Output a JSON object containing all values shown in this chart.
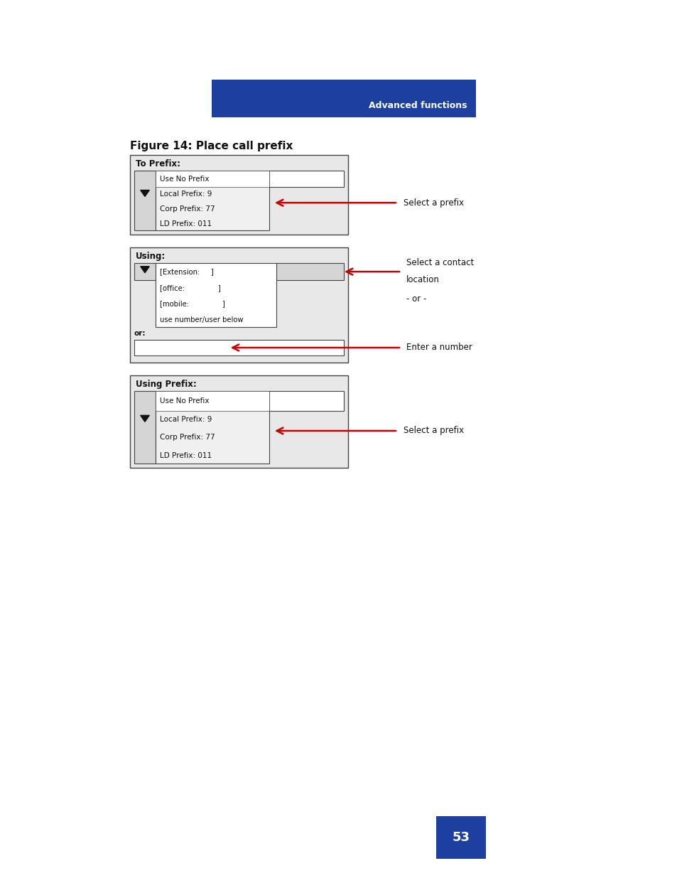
{
  "page_bg": "#ffffff",
  "header_bar_color": "#1c3fa0",
  "header_bar_text": "Advanced functions",
  "header_bar_text_color": "#ffffff",
  "figure_title": "Figure 14: Place call prefix",
  "panel1": {
    "label": "To Prefix:",
    "items": [
      "Use No Prefix",
      "Local Prefix: 9",
      "Corp Prefix: 77",
      "LD Prefix: 011"
    ],
    "arrow_label": "Select a prefix"
  },
  "panel2": {
    "label": "Using:",
    "dropdown_items": [
      "[Extension:     ]",
      "[office:               ]",
      "[mobile:               ]",
      "use number/user below"
    ],
    "or_label": "or:",
    "arrow_label1": "Select a contact",
    "arrow_label1b": "location",
    "or_text": "- or -",
    "arrow_label2": "Enter a number"
  },
  "panel3": {
    "label": "Using Prefix:",
    "items": [
      "Use No Prefix",
      "Local Prefix: 9",
      "Corp Prefix: 77",
      "LD Prefix: 011"
    ],
    "arrow_label": "Select a prefix"
  },
  "footer_box_color": "#1c3fa0",
  "footer_text": "53",
  "footer_text_color": "#ffffff",
  "panel_border_color": "#444444",
  "panel_bg": "#e8e8e8",
  "inner_list_bg": "#f0f0f0",
  "white_bg": "#ffffff",
  "arrow_color": "#cc0000",
  "text_color": "#111111"
}
